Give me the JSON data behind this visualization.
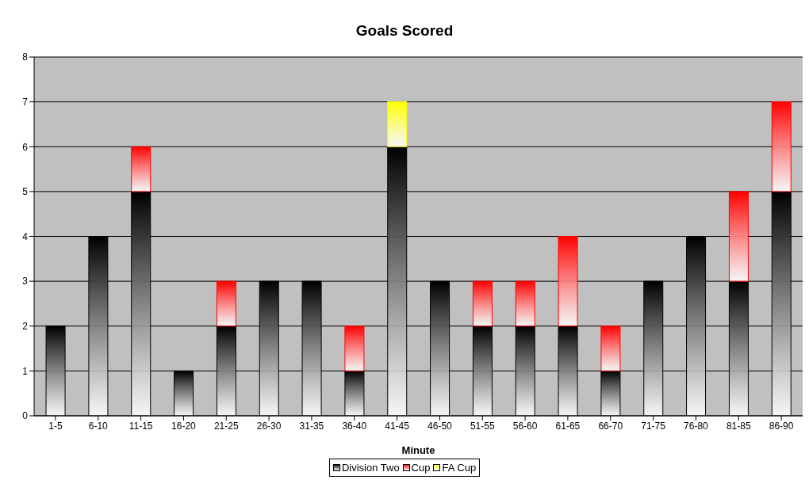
{
  "chart_data": {
    "type": "bar",
    "title": "Goals Scored",
    "xlabel": "Minute",
    "stacked": true,
    "categories": [
      "1-5",
      "6-10",
      "11-15",
      "16-20",
      "21-25",
      "26-30",
      "31-35",
      "36-40",
      "41-45",
      "46-50",
      "51-55",
      "56-60",
      "61-65",
      "66-70",
      "71-75",
      "76-80",
      "81-85",
      "86-90"
    ],
    "series": [
      {
        "name": "Division Two",
        "color": "#000000",
        "values": [
          2,
          4,
          5,
          1,
          2,
          3,
          3,
          1,
          6,
          3,
          2,
          2,
          2,
          1,
          3,
          4,
          3,
          5
        ]
      },
      {
        "name": "Cup",
        "color": "#ff0000",
        "values": [
          null,
          null,
          1,
          null,
          1,
          null,
          null,
          1,
          null,
          null,
          1,
          1,
          2,
          1,
          null,
          null,
          2,
          2
        ]
      },
      {
        "name": "FA Cup",
        "color": "#ffff00",
        "values": [
          null,
          null,
          null,
          null,
          null,
          null,
          null,
          null,
          1,
          null,
          null,
          null,
          null,
          null,
          null,
          null,
          null,
          null
        ]
      }
    ],
    "ylim": [
      0,
      8
    ],
    "yticks": [
      0,
      1,
      2,
      3,
      4,
      5,
      6,
      7,
      8
    ],
    "grid": "y",
    "legend": "bottom"
  }
}
